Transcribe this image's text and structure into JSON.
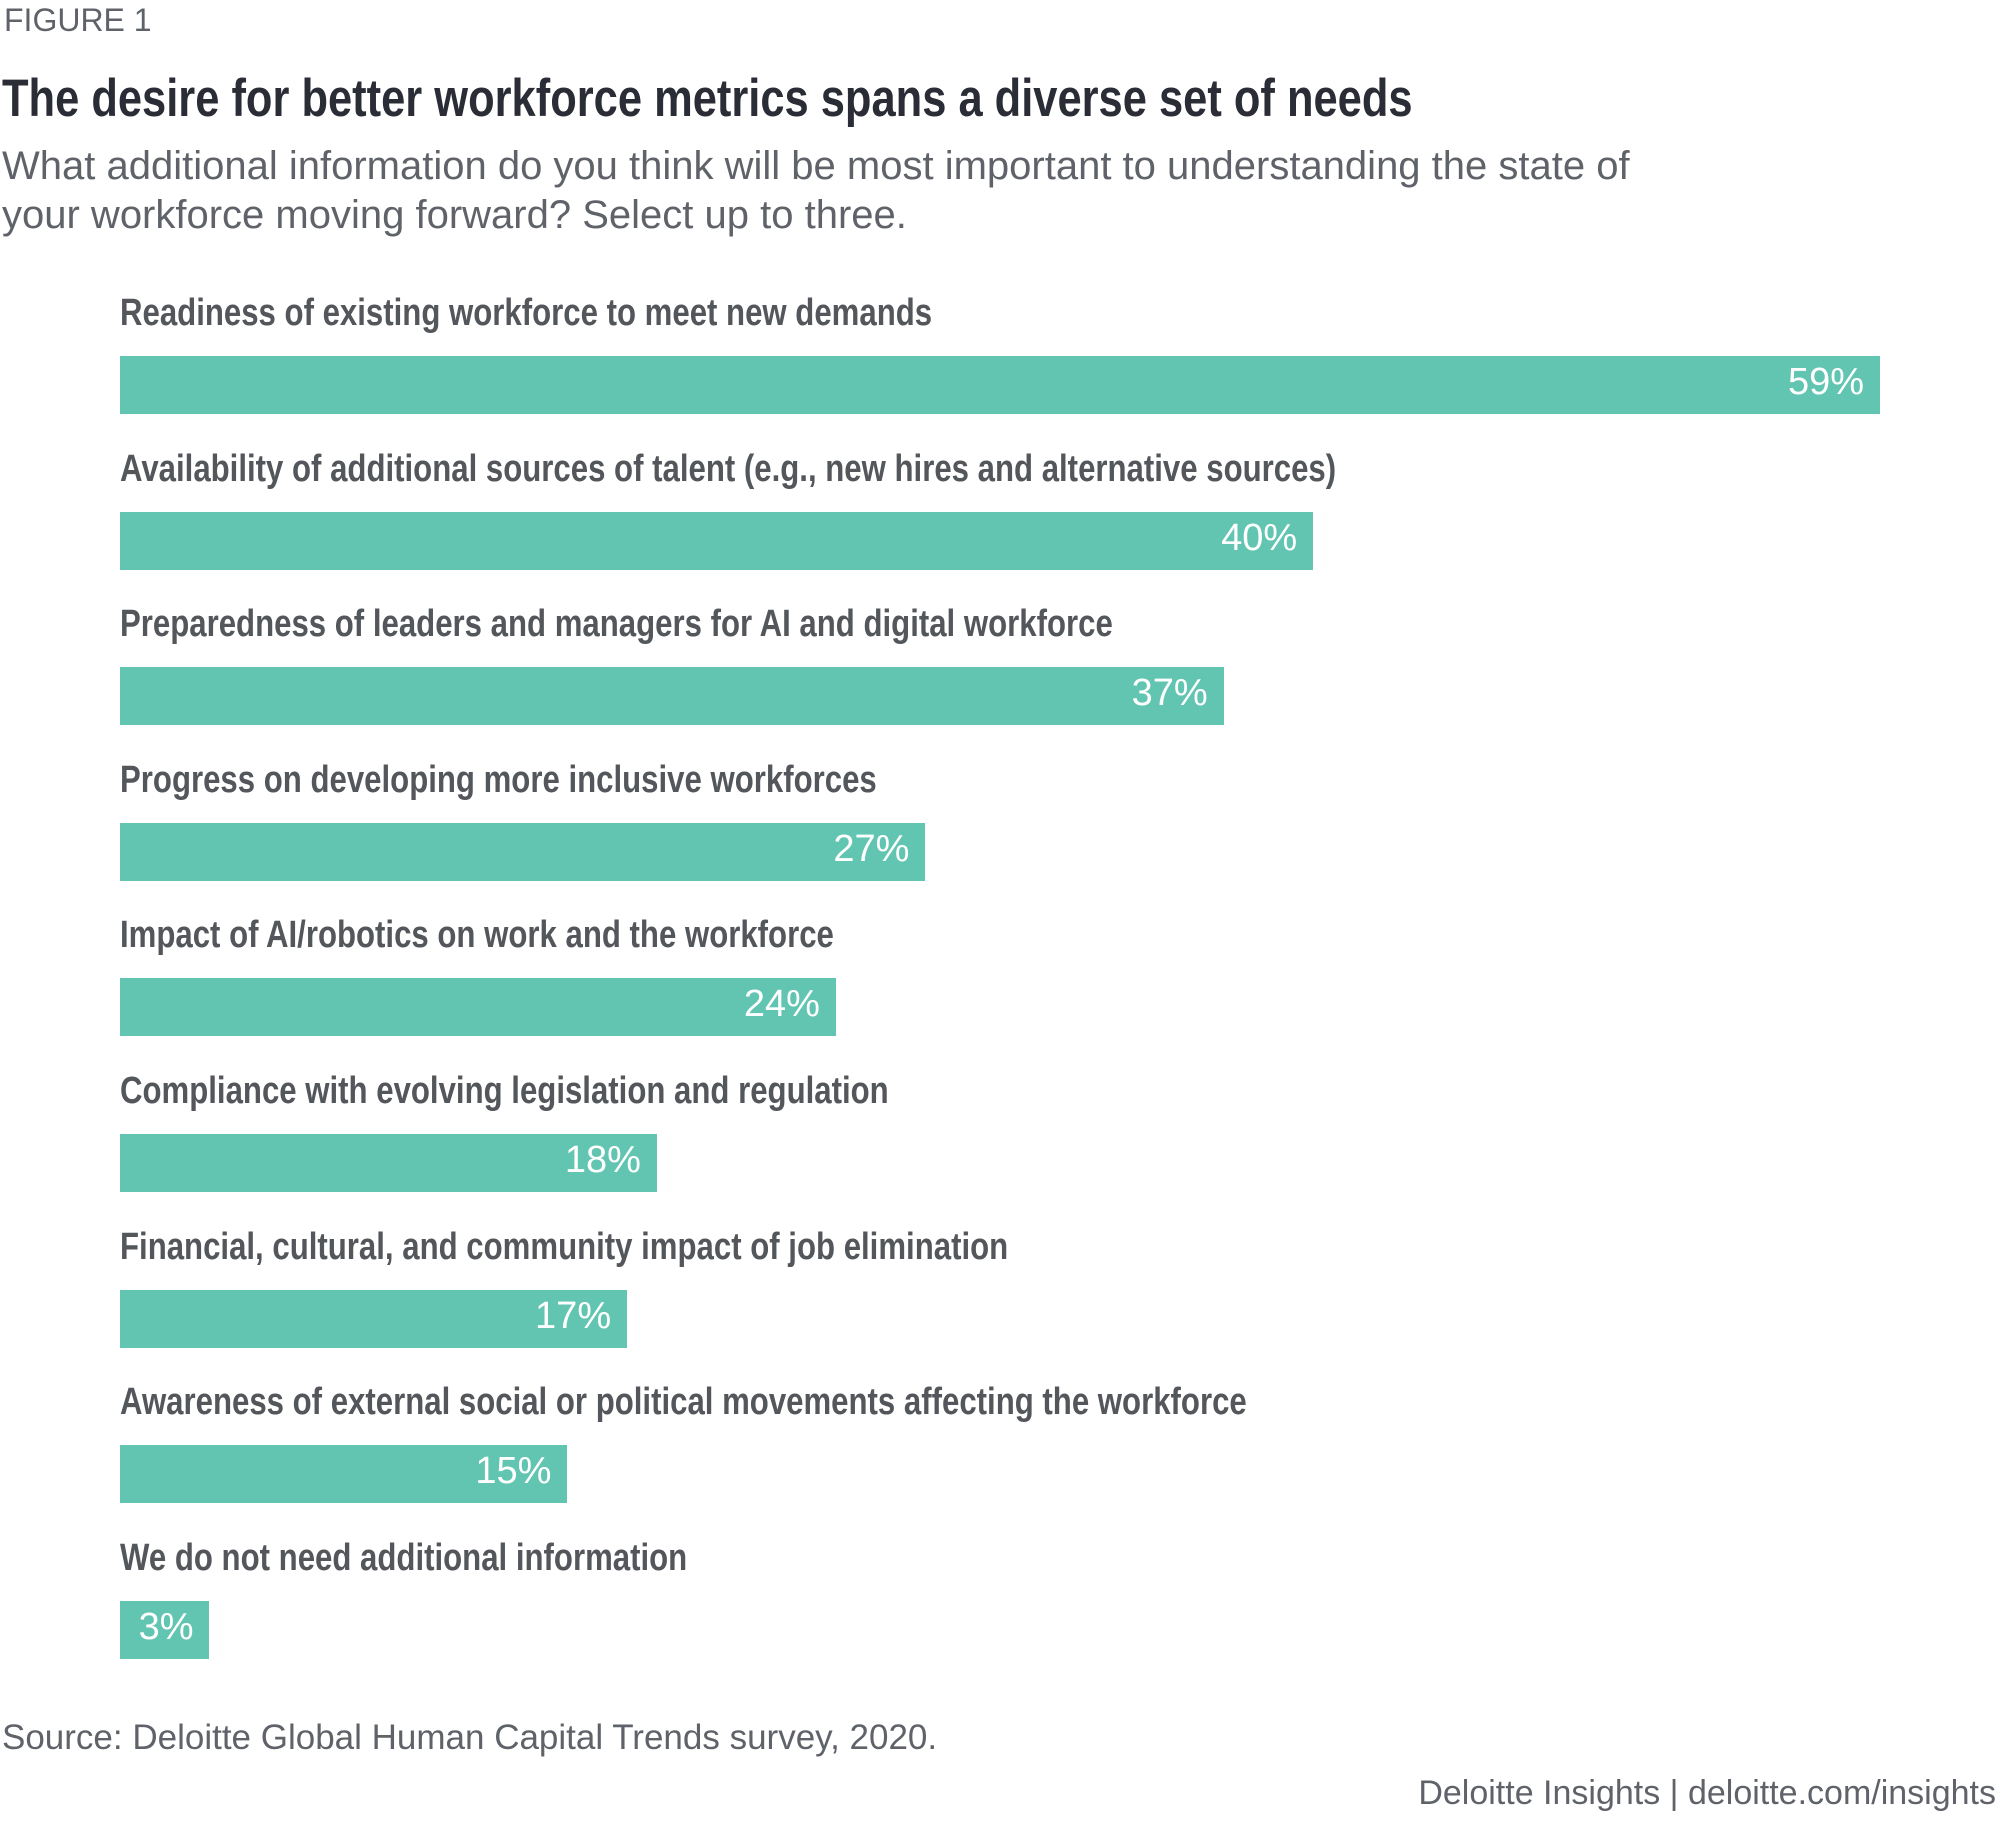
{
  "figure_label": "FIGURE 1",
  "chart_data": {
    "type": "bar",
    "orientation": "horizontal",
    "title": "The desire for better workforce metrics spans a diverse set of needs",
    "subtitle": [
      "What additional information do you think will be most important to understanding the state of",
      "your workforce moving forward? Select up to three."
    ],
    "categories": [
      "Readiness of existing workforce to meet new demands",
      "Availability of additional sources of talent (e.g., new hires and alternative sources)",
      "Preparedness of leaders and managers for AI and digital workforce",
      "Progress on developing more inclusive workforces",
      "Impact of AI/robotics on work and the workforce",
      "Compliance with evolving legislation and regulation",
      "Financial, cultural, and community impact of job elimination",
      "Awareness of external social or political movements affecting the workforce",
      "We do not need additional information"
    ],
    "values": [
      59,
      40,
      37,
      27,
      24,
      18,
      17,
      15,
      3
    ],
    "value_labels": [
      "59%",
      "40%",
      "37%",
      "27%",
      "24%",
      "18%",
      "17%",
      "15%",
      "3%"
    ],
    "unit": "%",
    "xlim": [
      0,
      59
    ],
    "grid": false,
    "bar_color": "#62c5b2"
  },
  "source": "Source: Deloitte Global Human Capital Trends survey, 2020.",
  "footer": "Deloitte Insights | deloitte.com/insights"
}
